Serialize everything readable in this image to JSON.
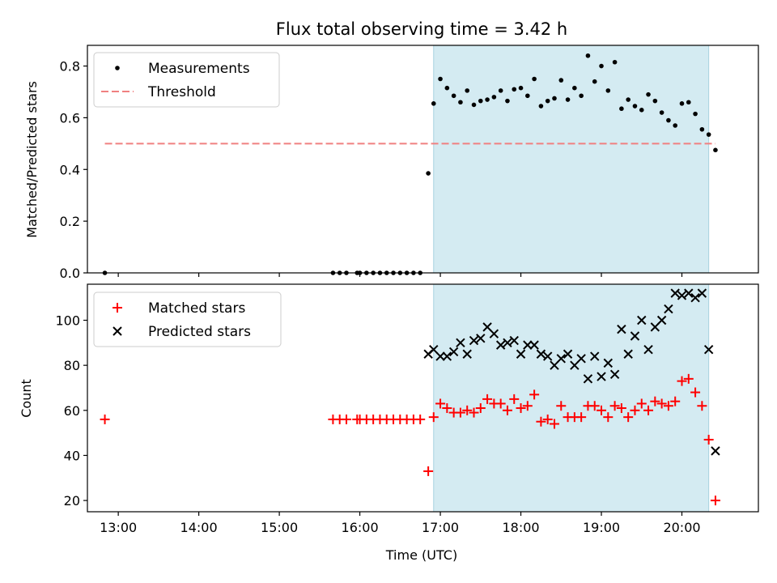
{
  "chart_data": [
    {
      "type": "scatter",
      "title": "Flux total observing time = 3.42 h",
      "xlabel": "",
      "ylabel": "Matched/Predicted stars",
      "xlim": [
        "12:37",
        "20:57"
      ],
      "ylim": [
        0,
        0.88
      ],
      "yticks": [
        "0.0",
        "0.2",
        "0.4",
        "0.6",
        "0.8"
      ],
      "ytick_values": [
        0,
        0.2,
        0.4,
        0.6,
        0.8
      ],
      "grid": false,
      "legend_position": "top-left",
      "shaded_interval": {
        "start": "16:55",
        "end": "20:20",
        "color": "#d4ebf2"
      },
      "threshold": {
        "name": "Threshold",
        "value": 0.5,
        "x_start": "12:50",
        "x_end": "20:25",
        "color": "#f08080"
      },
      "series": [
        {
          "name": "Measurements",
          "marker": "dot",
          "color": "#000000",
          "points": [
            [
              "12:50",
              0.0
            ],
            [
              "15:40",
              0.0
            ],
            [
              "15:45",
              0.0
            ],
            [
              "15:50",
              0.0
            ],
            [
              "15:58",
              0.0
            ],
            [
              "16:00",
              0.0
            ],
            [
              "16:05",
              0.0
            ],
            [
              "16:10",
              0.0
            ],
            [
              "16:15",
              0.0
            ],
            [
              "16:20",
              0.0
            ],
            [
              "16:25",
              0.0
            ],
            [
              "16:30",
              0.0
            ],
            [
              "16:35",
              0.0
            ],
            [
              "16:40",
              0.0
            ],
            [
              "16:45",
              0.0
            ],
            [
              "16:51",
              0.385
            ],
            [
              "16:55",
              0.655
            ],
            [
              "17:00",
              0.75
            ],
            [
              "17:05",
              0.715
            ],
            [
              "17:10",
              0.685
            ],
            [
              "17:15",
              0.66
            ],
            [
              "17:20",
              0.705
            ],
            [
              "17:25",
              0.65
            ],
            [
              "17:30",
              0.665
            ],
            [
              "17:35",
              0.67
            ],
            [
              "17:40",
              0.68
            ],
            [
              "17:45",
              0.705
            ],
            [
              "17:50",
              0.665
            ],
            [
              "17:55",
              0.71
            ],
            [
              "18:00",
              0.715
            ],
            [
              "18:05",
              0.685
            ],
            [
              "18:10",
              0.75
            ],
            [
              "18:15",
              0.645
            ],
            [
              "18:20",
              0.665
            ],
            [
              "18:25",
              0.675
            ],
            [
              "18:30",
              0.745
            ],
            [
              "18:35",
              0.67
            ],
            [
              "18:40",
              0.715
            ],
            [
              "18:45",
              0.685
            ],
            [
              "18:50",
              0.84
            ],
            [
              "18:55",
              0.74
            ],
            [
              "19:00",
              0.8
            ],
            [
              "19:05",
              0.705
            ],
            [
              "19:10",
              0.815
            ],
            [
              "19:15",
              0.635
            ],
            [
              "19:20",
              0.67
            ],
            [
              "19:25",
              0.645
            ],
            [
              "19:30",
              0.63
            ],
            [
              "19:35",
              0.69
            ],
            [
              "19:40",
              0.665
            ],
            [
              "19:45",
              0.62
            ],
            [
              "19:50",
              0.59
            ],
            [
              "19:55",
              0.57
            ],
            [
              "20:00",
              0.655
            ],
            [
              "20:05",
              0.66
            ],
            [
              "20:10",
              0.615
            ],
            [
              "20:15",
              0.555
            ],
            [
              "20:20",
              0.535
            ],
            [
              "20:25",
              0.475
            ]
          ]
        }
      ]
    },
    {
      "type": "scatter",
      "title": "",
      "xlabel": "Time (UTC)",
      "ylabel": "Count",
      "xlim": [
        "12:37",
        "20:57"
      ],
      "ylim": [
        15,
        116
      ],
      "xticks": [
        "13:00",
        "14:00",
        "15:00",
        "16:00",
        "17:00",
        "18:00",
        "19:00",
        "20:00"
      ],
      "yticks": [
        "20",
        "40",
        "60",
        "80",
        "100"
      ],
      "ytick_values": [
        20,
        40,
        60,
        80,
        100
      ],
      "grid": false,
      "legend_position": "top-left",
      "shaded_interval": {
        "start": "16:55",
        "end": "20:20",
        "color": "#d4ebf2"
      },
      "series": [
        {
          "name": "Matched stars",
          "marker": "plus",
          "color": "#ff0000",
          "points": [
            [
              "12:50",
              56
            ],
            [
              "15:40",
              56
            ],
            [
              "15:45",
              56
            ],
            [
              "15:50",
              56
            ],
            [
              "15:58",
              56
            ],
            [
              "16:00",
              56
            ],
            [
              "16:05",
              56
            ],
            [
              "16:10",
              56
            ],
            [
              "16:15",
              56
            ],
            [
              "16:20",
              56
            ],
            [
              "16:25",
              56
            ],
            [
              "16:30",
              56
            ],
            [
              "16:35",
              56
            ],
            [
              "16:40",
              56
            ],
            [
              "16:45",
              56
            ],
            [
              "16:51",
              33
            ],
            [
              "16:55",
              57
            ],
            [
              "17:00",
              63
            ],
            [
              "17:05",
              61
            ],
            [
              "17:10",
              59
            ],
            [
              "17:15",
              59
            ],
            [
              "17:20",
              60
            ],
            [
              "17:25",
              59
            ],
            [
              "17:30",
              61
            ],
            [
              "17:35",
              65
            ],
            [
              "17:40",
              63
            ],
            [
              "17:45",
              63
            ],
            [
              "17:50",
              60
            ],
            [
              "17:55",
              65
            ],
            [
              "18:00",
              61
            ],
            [
              "18:05",
              62
            ],
            [
              "18:10",
              67
            ],
            [
              "18:15",
              55
            ],
            [
              "18:20",
              56
            ],
            [
              "18:25",
              54
            ],
            [
              "18:30",
              62
            ],
            [
              "18:35",
              57
            ],
            [
              "18:40",
              57
            ],
            [
              "18:45",
              57
            ],
            [
              "18:50",
              62
            ],
            [
              "18:55",
              62
            ],
            [
              "19:00",
              60
            ],
            [
              "19:05",
              57
            ],
            [
              "19:10",
              62
            ],
            [
              "19:15",
              61
            ],
            [
              "19:20",
              57
            ],
            [
              "19:25",
              60
            ],
            [
              "19:30",
              63
            ],
            [
              "19:35",
              60
            ],
            [
              "19:40",
              64
            ],
            [
              "19:45",
              63
            ],
            [
              "19:50",
              62
            ],
            [
              "19:55",
              64
            ],
            [
              "20:00",
              73
            ],
            [
              "20:05",
              74
            ],
            [
              "20:10",
              68
            ],
            [
              "20:15",
              62
            ],
            [
              "20:20",
              47
            ],
            [
              "20:25",
              20
            ]
          ]
        },
        {
          "name": "Predicted stars",
          "marker": "x",
          "color": "#000000",
          "points": [
            [
              "16:51",
              85
            ],
            [
              "16:55",
              87
            ],
            [
              "17:00",
              84
            ],
            [
              "17:05",
              84
            ],
            [
              "17:10",
              86
            ],
            [
              "17:15",
              90
            ],
            [
              "17:20",
              85
            ],
            [
              "17:25",
              91
            ],
            [
              "17:30",
              92
            ],
            [
              "17:35",
              97
            ],
            [
              "17:40",
              94
            ],
            [
              "17:45",
              89
            ],
            [
              "17:50",
              90
            ],
            [
              "17:55",
              91
            ],
            [
              "18:00",
              85
            ],
            [
              "18:05",
              89
            ],
            [
              "18:10",
              89
            ],
            [
              "18:15",
              85
            ],
            [
              "18:20",
              84
            ],
            [
              "18:25",
              80
            ],
            [
              "18:30",
              83
            ],
            [
              "18:35",
              85
            ],
            [
              "18:40",
              80
            ],
            [
              "18:45",
              83
            ],
            [
              "18:50",
              74
            ],
            [
              "18:55",
              84
            ],
            [
              "19:00",
              75
            ],
            [
              "19:05",
              81
            ],
            [
              "19:10",
              76
            ],
            [
              "19:15",
              96
            ],
            [
              "19:20",
              85
            ],
            [
              "19:25",
              93
            ],
            [
              "19:30",
              100
            ],
            [
              "19:35",
              87
            ],
            [
              "19:40",
              97
            ],
            [
              "19:45",
              100
            ],
            [
              "19:50",
              105
            ],
            [
              "19:55",
              112
            ],
            [
              "20:00",
              111
            ],
            [
              "20:05",
              112
            ],
            [
              "20:10",
              110
            ],
            [
              "20:15",
              112
            ],
            [
              "20:20",
              87
            ],
            [
              "20:25",
              42
            ]
          ]
        }
      ]
    }
  ]
}
